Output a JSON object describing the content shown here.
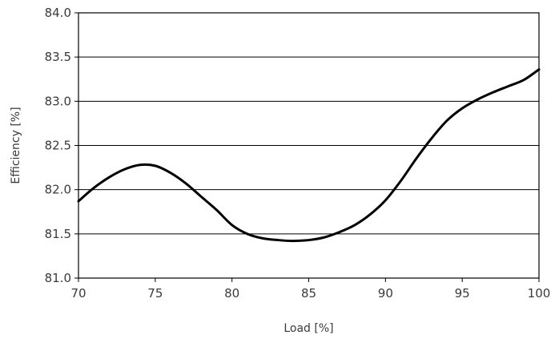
{
  "chart_data": {
    "type": "line",
    "title": "",
    "xlabel": "Load [%]",
    "ylabel": "Efficiency [%]",
    "xlim": [
      70,
      100
    ],
    "ylim": [
      81.0,
      84.0
    ],
    "xticks": [
      "70",
      "75",
      "80",
      "85",
      "90",
      "95",
      "100"
    ],
    "yticks": [
      "81.0",
      "81.5",
      "82.0",
      "82.5",
      "83.0",
      "83.5",
      "84.0"
    ],
    "grid": "horizontal",
    "series": [
      {
        "x": [
          70,
          71,
          72,
          73,
          74,
          75,
          76,
          77,
          78,
          79,
          80,
          81,
          82,
          83,
          84,
          85,
          86,
          87,
          88,
          89,
          90,
          91,
          92,
          93,
          94,
          95,
          96,
          97,
          98,
          99,
          100
        ],
        "y": [
          81.87,
          82.02,
          82.14,
          82.23,
          82.28,
          82.27,
          82.19,
          82.07,
          81.92,
          81.77,
          81.6,
          81.5,
          81.45,
          81.43,
          81.42,
          81.43,
          81.46,
          81.52,
          81.6,
          81.72,
          81.88,
          82.1,
          82.35,
          82.58,
          82.78,
          82.92,
          83.02,
          83.1,
          83.17,
          83.24,
          83.36
        ]
      }
    ]
  }
}
